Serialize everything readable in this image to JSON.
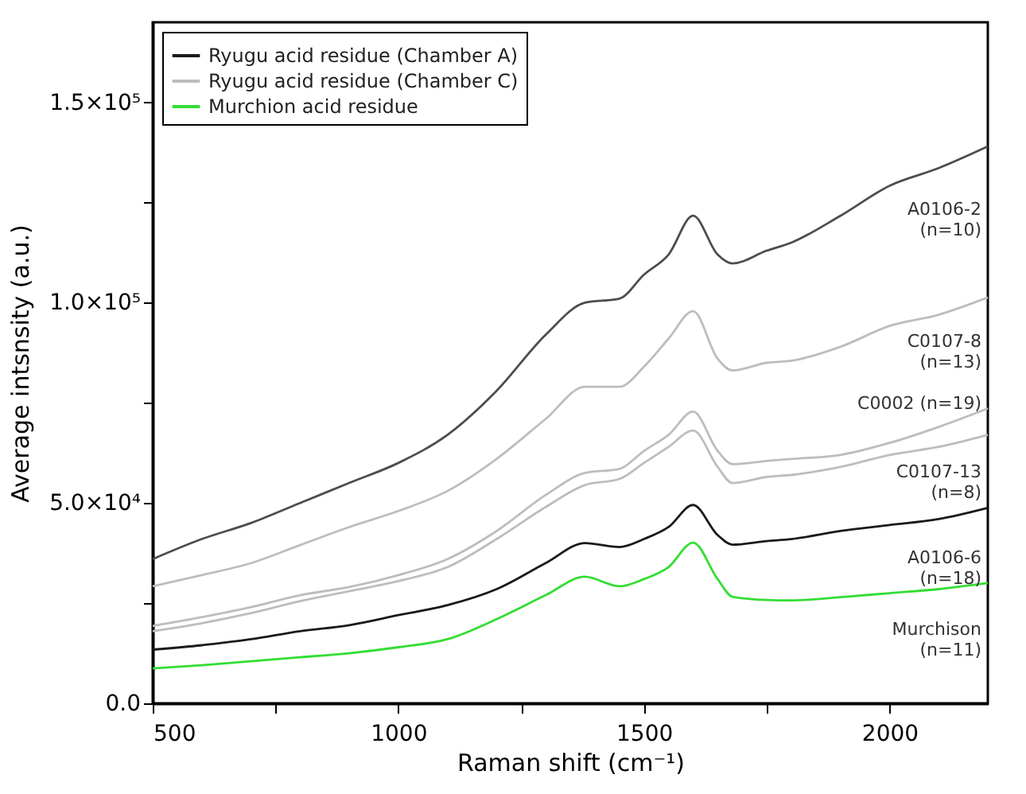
{
  "chart_data": {
    "type": "line",
    "xlabel": "Raman shift (cm⁻¹)",
    "ylabel": "Average intsnsity (a.u.)",
    "xlim": [
      500,
      2200
    ],
    "ylim": [
      0,
      170000
    ],
    "xticks": [
      500,
      {
        "value": 750,
        "label": null
      },
      1000,
      {
        "value": 1250,
        "label": null
      },
      1500,
      {
        "value": 1750,
        "label": null
      },
      2000
    ],
    "yticks": [
      {
        "value": 0,
        "label": "0.0"
      },
      {
        "value": 25000,
        "label": null
      },
      {
        "value": 50000,
        "label": "5.0×10⁴"
      },
      {
        "value": 75000,
        "label": null
      },
      {
        "value": 100000,
        "label": "1.0×10⁵"
      },
      {
        "value": 125000,
        "label": null
      },
      {
        "value": 150000,
        "label": "1.5×10⁵"
      }
    ],
    "grid": false,
    "legend": "top left",
    "line_style": "solid",
    "marker": "none",
    "x": [
      500,
      600,
      700,
      800,
      900,
      1000,
      1100,
      1200,
      1300,
      1380,
      1450,
      1500,
      1550,
      1600,
      1650,
      1680,
      1750,
      1800,
      1900,
      2000,
      2100,
      2200
    ],
    "series": [
      {
        "name": "Ryugu acid residue (Chamber A)",
        "color": "#1a1a1a",
        "values": [
          13400,
          14500,
          16000,
          18000,
          19500,
          22000,
          24500,
          28500,
          35000,
          40000,
          39000,
          41000,
          44000,
          49500,
          42000,
          39600,
          40500,
          41000,
          43000,
          44500,
          46000,
          48800
        ]
      },
      {
        "name": "Ryugu acid residue (Chamber C)",
        "color": "#bdbdbd",
        "values": [
          29200,
          32000,
          35000,
          39500,
          44000,
          48000,
          53000,
          61000,
          71000,
          79000,
          79000,
          84000,
          91000,
          97900,
          86000,
          83100,
          85000,
          85500,
          89000,
          94200,
          97000,
          101300
        ]
      },
      {
        "name": "Murchion acid residue",
        "color": "#33dd33",
        "values": [
          8700,
          9500,
          10500,
          11500,
          12500,
          14000,
          16000,
          21000,
          27000,
          31600,
          29200,
          31000,
          34000,
          40100,
          31000,
          26600,
          25800,
          25700,
          26500,
          27500,
          28500,
          30000
        ]
      },
      {
        "color": "#4d4d4d",
        "values": [
          36000,
          41000,
          45000,
          50000,
          55000,
          60000,
          67000,
          78000,
          92000,
          100000,
          101000,
          107000,
          112000,
          121700,
          112000,
          109800,
          113000,
          115000,
          121700,
          129200,
          133600,
          139000
        ]
      },
      {
        "color": "#bdbdbd",
        "values": [
          19300,
          21500,
          24000,
          27000,
          29000,
          32000,
          36000,
          43000,
          52000,
          57500,
          58500,
          63000,
          67000,
          72800,
          63000,
          59700,
          60500,
          61000,
          62000,
          65000,
          69000,
          73600
        ]
      },
      {
        "color": "#bdbdbd",
        "values": [
          18000,
          20000,
          22500,
          25500,
          28000,
          30500,
          34000,
          41000,
          49000,
          54500,
          56000,
          60000,
          64000,
          68100,
          59000,
          55000,
          56500,
          57000,
          59000,
          62000,
          64000,
          67000
        ]
      }
    ],
    "annotations": [
      "A0106-2\n(n=10)",
      "C0107-8\n(n=13)",
      "C0002 (n=19)",
      "C0107-13\n(n=8)",
      "A0106-6\n(n=18)",
      "Murchison\n(n=11)"
    ]
  }
}
